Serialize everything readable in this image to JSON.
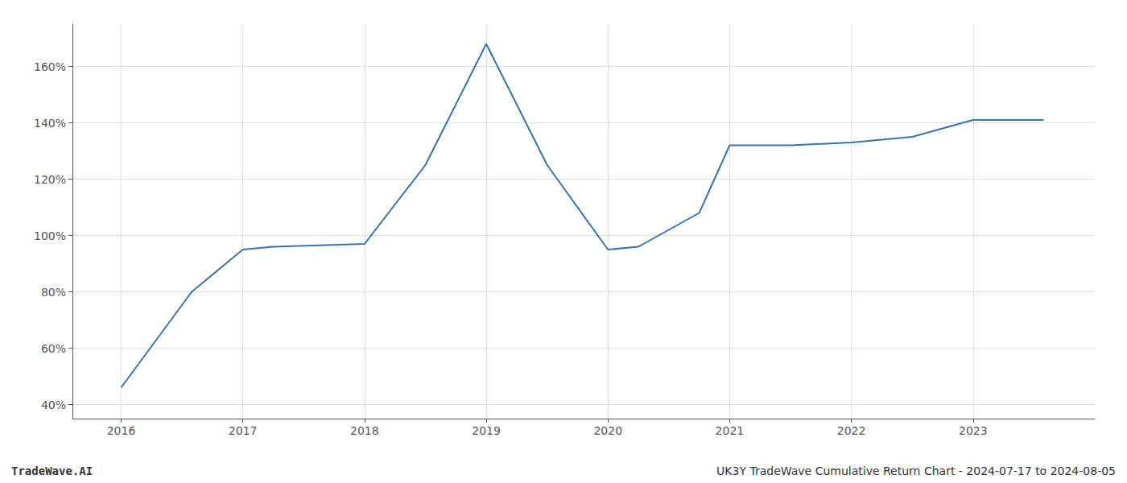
{
  "chart_data": {
    "type": "line",
    "x": [
      2016,
      2016.58,
      2017,
      2017.25,
      2018,
      2018.5,
      2019,
      2019.5,
      2020,
      2020.25,
      2020.75,
      2021,
      2021.5,
      2022,
      2022.5,
      2023,
      2023.58
    ],
    "values": [
      46,
      80,
      95,
      96,
      97,
      125,
      168,
      125,
      95,
      96,
      108,
      132,
      132,
      133,
      135,
      141,
      141
    ],
    "color": "#3a72b0",
    "xlim": [
      2015.6,
      2024.0
    ],
    "ylim": [
      35,
      175
    ],
    "xticks": [
      2016,
      2017,
      2018,
      2019,
      2020,
      2021,
      2022,
      2023
    ],
    "yticks": [
      {
        "value": 40,
        "label": "40%"
      },
      {
        "value": 60,
        "label": "60%"
      },
      {
        "value": 80,
        "label": "80%"
      },
      {
        "value": 100,
        "label": "100%"
      },
      {
        "value": 120,
        "label": "120%"
      },
      {
        "value": 140,
        "label": "140%"
      },
      {
        "value": 160,
        "label": "160%"
      }
    ],
    "grid": true,
    "annotations": [
      "TradeWave.AI",
      "UK3Y TradeWave Cumulative Return Chart - 2024-07-17 to 2024-08-05"
    ]
  }
}
